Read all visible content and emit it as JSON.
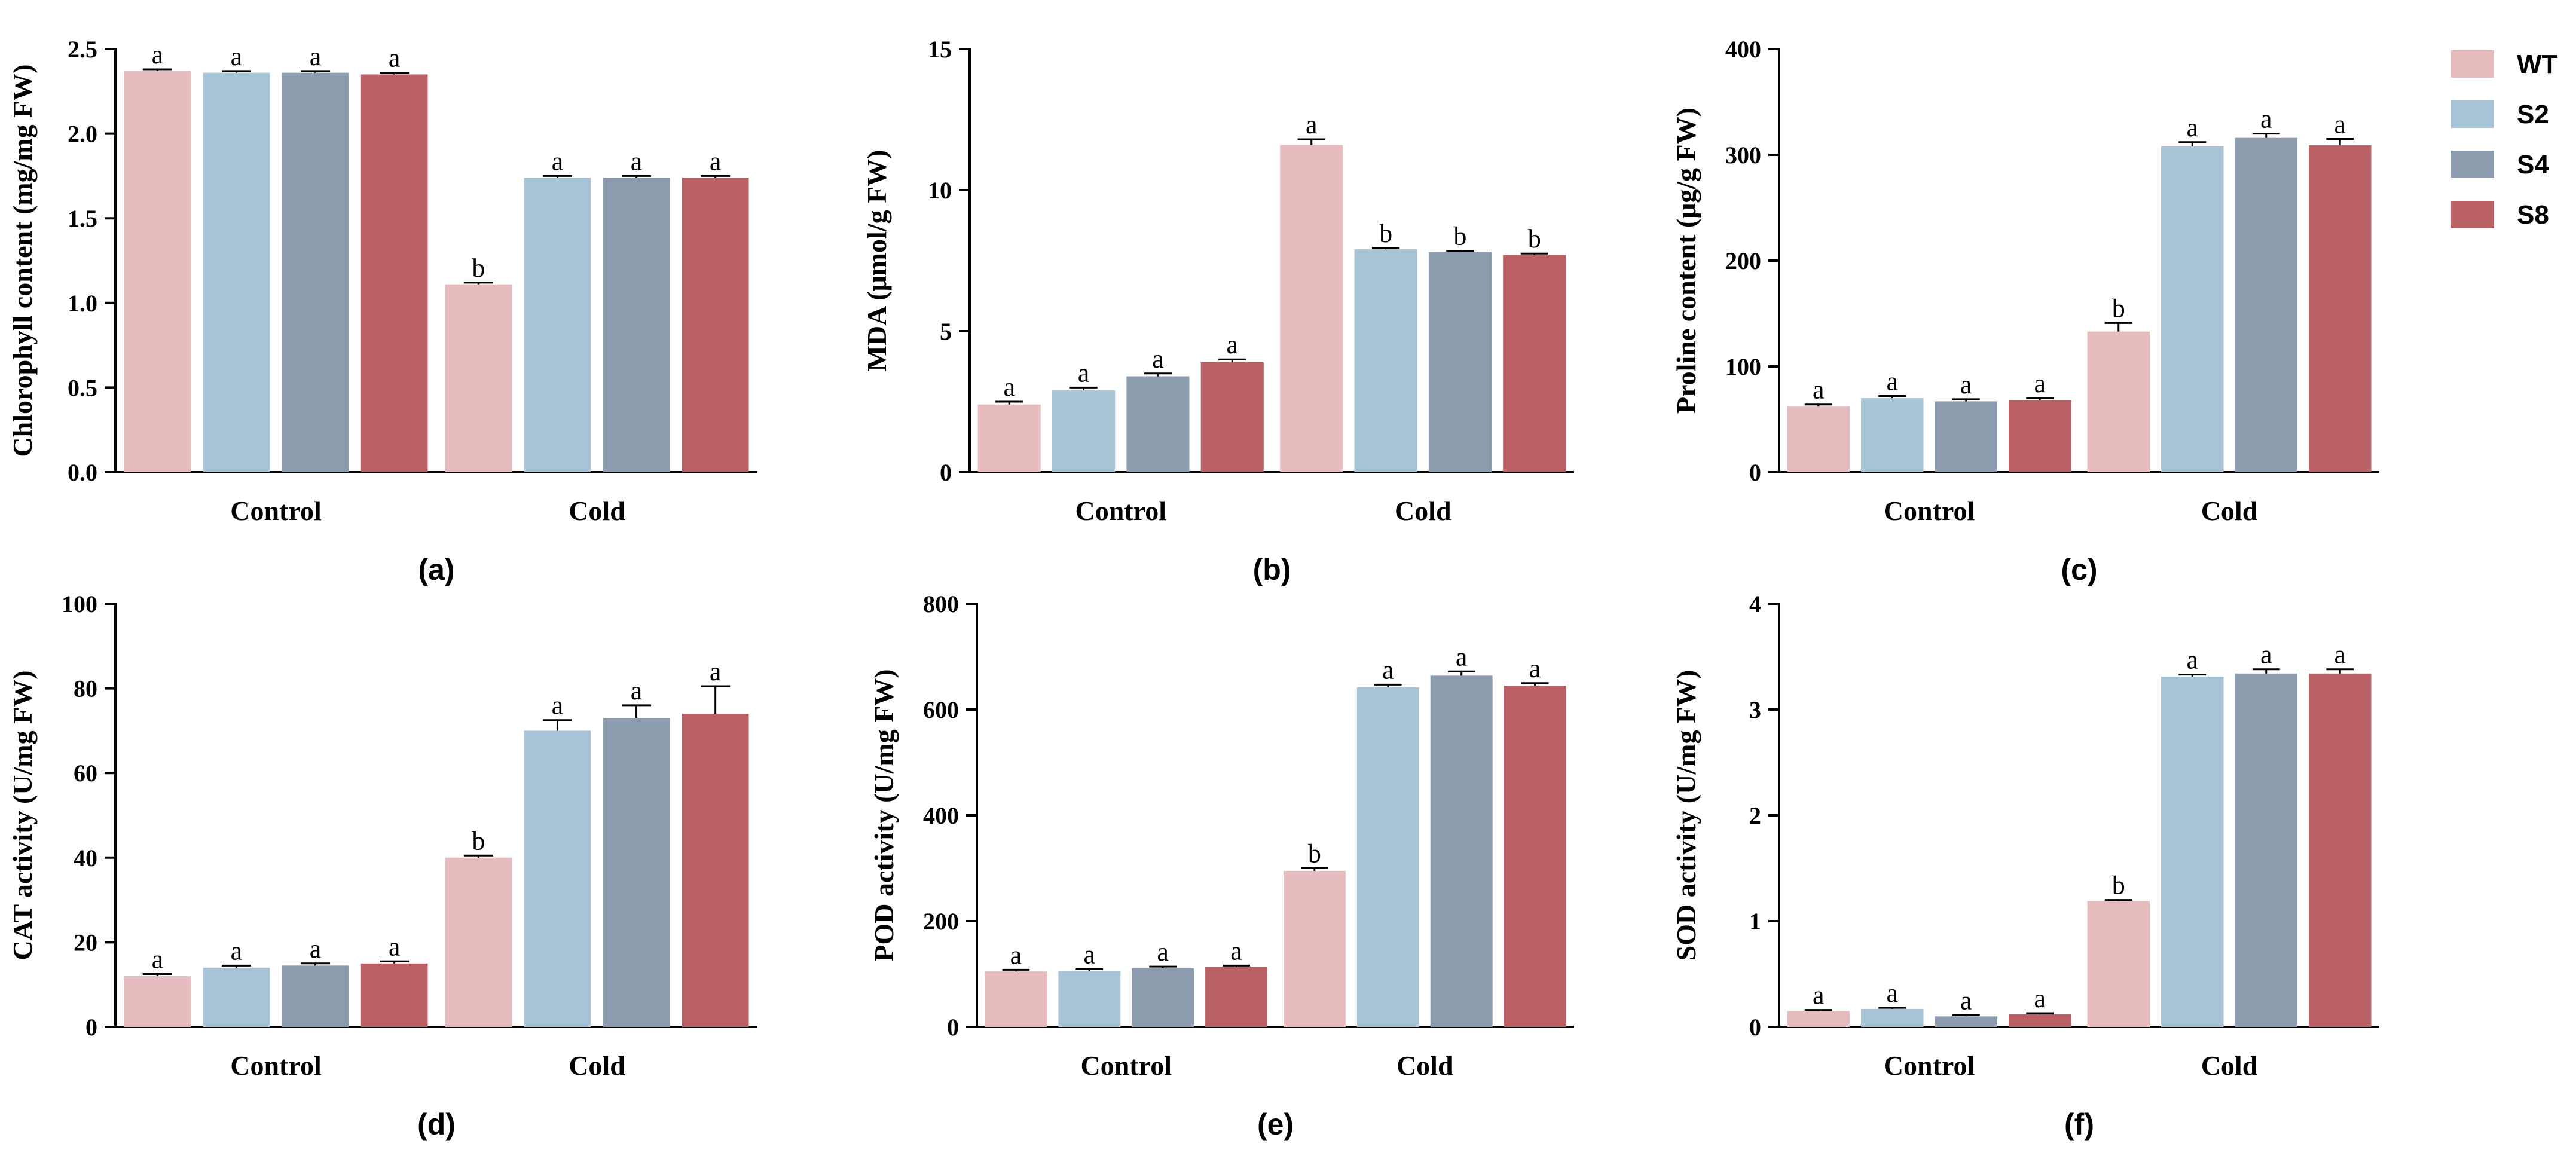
{
  "legend": {
    "entries": [
      {
        "name": "WT",
        "color": "#e7bcbf"
      },
      {
        "name": "S2",
        "color": "#a8c2d6"
      },
      {
        "name": "S4",
        "color": "#8c9cae"
      },
      {
        "name": "S8",
        "color": "#b96064"
      }
    ]
  },
  "chart_data": [
    {
      "type": "bar",
      "panel_label": "(a)",
      "title": "",
      "xlabel": "",
      "ylabel": "Chlorophyll content (mg/mg FW)",
      "categories": [
        "Control",
        "Cold"
      ],
      "ylim": [
        0,
        2.5
      ],
      "yticks": [
        0.0,
        0.5,
        1.0,
        1.5,
        2.0,
        2.5
      ],
      "ytick_labels": [
        "0.0",
        "0.5",
        "1.0",
        "1.5",
        "2.0",
        "2.5"
      ],
      "series": [
        {
          "name": "WT",
          "values": [
            2.37,
            1.11
          ],
          "errors": [
            0.01,
            0.01
          ],
          "letters": [
            "a",
            "b"
          ]
        },
        {
          "name": "S2",
          "values": [
            2.36,
            1.74
          ],
          "errors": [
            0.01,
            0.01
          ],
          "letters": [
            "a",
            "a"
          ]
        },
        {
          "name": "S4",
          "values": [
            2.36,
            1.74
          ],
          "errors": [
            0.01,
            0.01
          ],
          "letters": [
            "a",
            "a"
          ]
        },
        {
          "name": "S8",
          "values": [
            2.35,
            1.74
          ],
          "errors": [
            0.01,
            0.01
          ],
          "letters": [
            "a",
            "a"
          ]
        }
      ]
    },
    {
      "type": "bar",
      "panel_label": "(b)",
      "title": "",
      "xlabel": "",
      "ylabel": "MDA (μmol/g FW)",
      "categories": [
        "Control",
        "Cold"
      ],
      "ylim": [
        0,
        15
      ],
      "yticks": [
        0,
        5,
        10,
        15
      ],
      "ytick_labels": [
        "0",
        "5",
        "10",
        "15"
      ],
      "series": [
        {
          "name": "WT",
          "values": [
            2.4,
            11.6
          ],
          "errors": [
            0.1,
            0.2
          ],
          "letters": [
            "a",
            "a"
          ]
        },
        {
          "name": "S2",
          "values": [
            2.9,
            7.9
          ],
          "errors": [
            0.1,
            0.05
          ],
          "letters": [
            "a",
            "b"
          ]
        },
        {
          "name": "S4",
          "values": [
            3.4,
            7.8
          ],
          "errors": [
            0.1,
            0.05
          ],
          "letters": [
            "a",
            "b"
          ]
        },
        {
          "name": "S8",
          "values": [
            3.9,
            7.7
          ],
          "errors": [
            0.1,
            0.05
          ],
          "letters": [
            "a",
            "b"
          ]
        }
      ]
    },
    {
      "type": "bar",
      "panel_label": "(c)",
      "title": "",
      "xlabel": "",
      "ylabel": "Proline content (μg/g FW)",
      "categories": [
        "Control",
        "Cold"
      ],
      "ylim": [
        0,
        400
      ],
      "yticks": [
        0,
        100,
        200,
        300,
        400
      ],
      "ytick_labels": [
        "0",
        "100",
        "200",
        "300",
        "400"
      ],
      "series": [
        {
          "name": "WT",
          "values": [
            62,
            133
          ],
          "errors": [
            2,
            8
          ],
          "letters": [
            "a",
            "b"
          ]
        },
        {
          "name": "S2",
          "values": [
            70,
            308
          ],
          "errors": [
            2,
            4
          ],
          "letters": [
            "a",
            "a"
          ]
        },
        {
          "name": "S4",
          "values": [
            67,
            316
          ],
          "errors": [
            2,
            4
          ],
          "letters": [
            "a",
            "a"
          ]
        },
        {
          "name": "S8",
          "values": [
            68,
            309
          ],
          "errors": [
            2,
            6
          ],
          "letters": [
            "a",
            "a"
          ]
        }
      ]
    },
    {
      "type": "bar",
      "panel_label": "(d)",
      "title": "",
      "xlabel": "",
      "ylabel": "CAT activity (U/mg FW)",
      "categories": [
        "Control",
        "Cold"
      ],
      "ylim": [
        0,
        100
      ],
      "yticks": [
        0,
        20,
        40,
        60,
        80,
        100
      ],
      "ytick_labels": [
        "0",
        "20",
        "40",
        "60",
        "80",
        "100"
      ],
      "series": [
        {
          "name": "WT",
          "values": [
            12,
            40
          ],
          "errors": [
            0.5,
            0.5
          ],
          "letters": [
            "a",
            "b"
          ]
        },
        {
          "name": "S2",
          "values": [
            14,
            70
          ],
          "errors": [
            0.5,
            2.5
          ],
          "letters": [
            "a",
            "a"
          ]
        },
        {
          "name": "S4",
          "values": [
            14.5,
            73
          ],
          "errors": [
            0.5,
            3
          ],
          "letters": [
            "a",
            "a"
          ]
        },
        {
          "name": "S8",
          "values": [
            15,
            74
          ],
          "errors": [
            0.5,
            6.5
          ],
          "letters": [
            "a",
            "a"
          ]
        }
      ]
    },
    {
      "type": "bar",
      "panel_label": "(e)",
      "title": "",
      "xlabel": "",
      "ylabel": "POD activity (U/mg FW)",
      "categories": [
        "Control",
        "Cold"
      ],
      "ylim": [
        0,
        800
      ],
      "yticks": [
        0,
        200,
        400,
        600,
        800
      ],
      "ytick_labels": [
        "0",
        "200",
        "400",
        "600",
        "800"
      ],
      "series": [
        {
          "name": "WT",
          "values": [
            105,
            295
          ],
          "errors": [
            3,
            5
          ],
          "letters": [
            "a",
            "b"
          ]
        },
        {
          "name": "S2",
          "values": [
            106,
            642
          ],
          "errors": [
            3,
            5
          ],
          "letters": [
            "a",
            "a"
          ]
        },
        {
          "name": "S4",
          "values": [
            111,
            664
          ],
          "errors": [
            3,
            8
          ],
          "letters": [
            "a",
            "a"
          ]
        },
        {
          "name": "S8",
          "values": [
            113,
            645
          ],
          "errors": [
            3,
            5
          ],
          "letters": [
            "a",
            "a"
          ]
        }
      ]
    },
    {
      "type": "bar",
      "panel_label": "(f)",
      "title": "",
      "xlabel": "",
      "ylabel": "SOD activity (U/mg FW)",
      "categories": [
        "Control",
        "Cold"
      ],
      "ylim": [
        0,
        4
      ],
      "yticks": [
        0,
        1,
        2,
        3,
        4
      ],
      "ytick_labels": [
        "0",
        "1",
        "2",
        "3",
        "4"
      ],
      "series": [
        {
          "name": "WT",
          "values": [
            0.15,
            1.19
          ],
          "errors": [
            0.01,
            0.01
          ],
          "letters": [
            "a",
            "b"
          ]
        },
        {
          "name": "S2",
          "values": [
            0.17,
            3.31
          ],
          "errors": [
            0.01,
            0.02
          ],
          "letters": [
            "a",
            "a"
          ]
        },
        {
          "name": "S4",
          "values": [
            0.1,
            3.34
          ],
          "errors": [
            0.01,
            0.04
          ],
          "letters": [
            "a",
            "a"
          ]
        },
        {
          "name": "S8",
          "values": [
            0.12,
            3.34
          ],
          "errors": [
            0.01,
            0.04
          ],
          "letters": [
            "a",
            "a"
          ]
        }
      ]
    }
  ]
}
